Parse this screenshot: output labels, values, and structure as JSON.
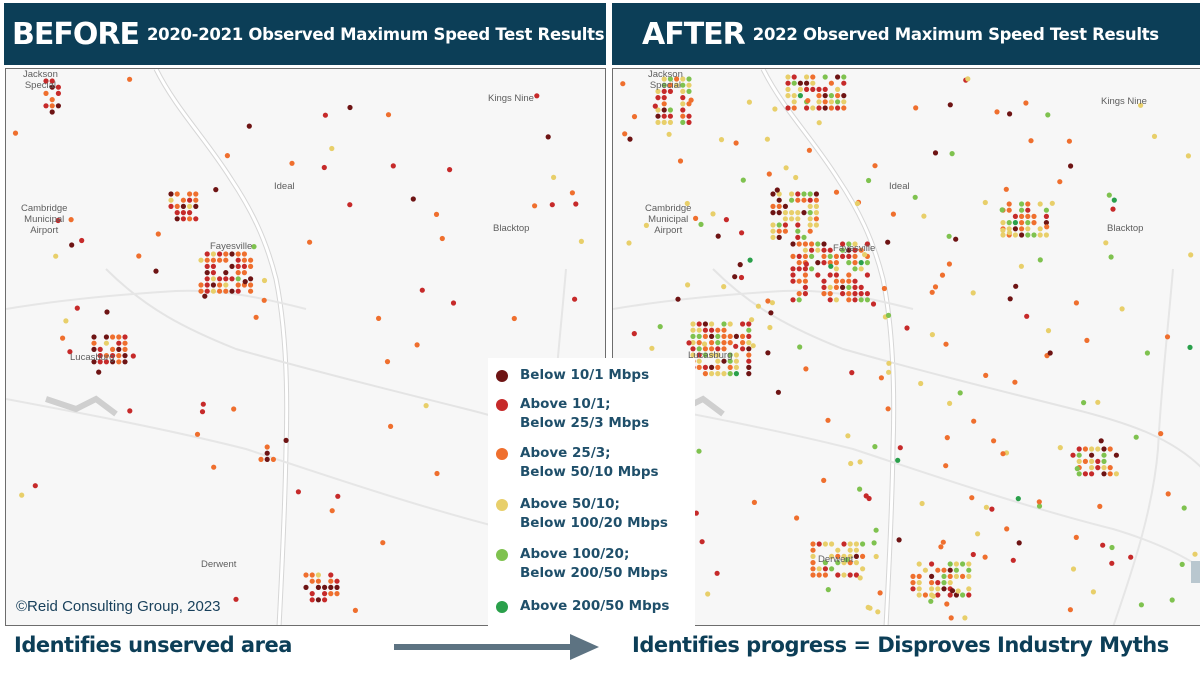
{
  "banners": {
    "before": {
      "big": "BEFORE",
      "sub": "2020-2021 Observed Maximum Speed Test Results"
    },
    "after": {
      "big": "AFTER",
      "sub": "2022 Observed Maximum Speed Test Results"
    }
  },
  "legend": [
    {
      "line1": "Below 10/1 Mbps",
      "line2": "",
      "color": "#6e1414"
    },
    {
      "line1": "Above 10/1;",
      "line2": "Below 25/3 Mbps",
      "color": "#c62a2a"
    },
    {
      "line1": "Above 25/3;",
      "line2": "Below 50/10 Mbps",
      "color": "#ef6f2e"
    },
    {
      "line1": "Above 50/10;",
      "line2": "Below 100/20 Mbps",
      "color": "#e8cf6a"
    },
    {
      "line1": "Above 100/20;",
      "line2": "Below 200/50 Mbps",
      "color": "#7fc24f"
    },
    {
      "line1": "Above 200/50 Mbps",
      "line2": "",
      "color": "#2aa04b"
    }
  ],
  "place_labels": {
    "jackson": "Jackson\nSpecial",
    "kings": "Kings Nine",
    "ideal": "Ideal",
    "airport": "Cambridge\nMunicipal\nAirport",
    "blacktop": "Blacktop",
    "fayesville": "Fayesville",
    "lucasburg": "Lucasburg",
    "derwent": "Derwent"
  },
  "copyright": "©Reid Consulting Group, 2023",
  "captions": {
    "left": "Identifies unserved area",
    "right": "Identifies progress = Disproves Industry Myths"
  }
}
